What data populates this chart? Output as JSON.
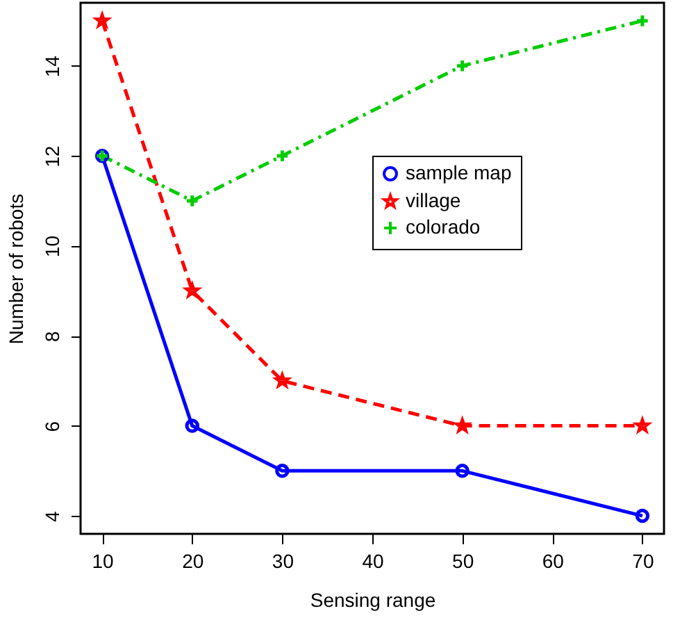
{
  "chart_data": {
    "type": "line",
    "xlabel": "Sensing range",
    "ylabel": "Number of robots",
    "x": [
      10,
      20,
      30,
      50,
      70
    ],
    "series": [
      {
        "name": "sample map",
        "color": "#0000ff",
        "values": [
          12,
          6,
          5,
          5,
          4
        ],
        "marker": "circle",
        "line_style": "solid"
      },
      {
        "name": "village",
        "color": "#ff0000",
        "values": [
          15,
          9,
          7,
          6,
          6
        ],
        "marker": "star",
        "line_style": "dashed"
      },
      {
        "name": "colorado",
        "color": "#00cd00",
        "values": [
          12,
          11,
          12,
          14,
          15
        ],
        "marker": "cross",
        "line_style": "dashdot"
      }
    ],
    "xlim": [
      7.6,
      72.4
    ],
    "ylim": [
      3.6,
      15.4
    ],
    "xticks": [
      10,
      20,
      30,
      40,
      50,
      60,
      70
    ],
    "yticks": [
      4,
      6,
      8,
      10,
      12,
      14
    ],
    "grid": false,
    "legend": "top right"
  }
}
